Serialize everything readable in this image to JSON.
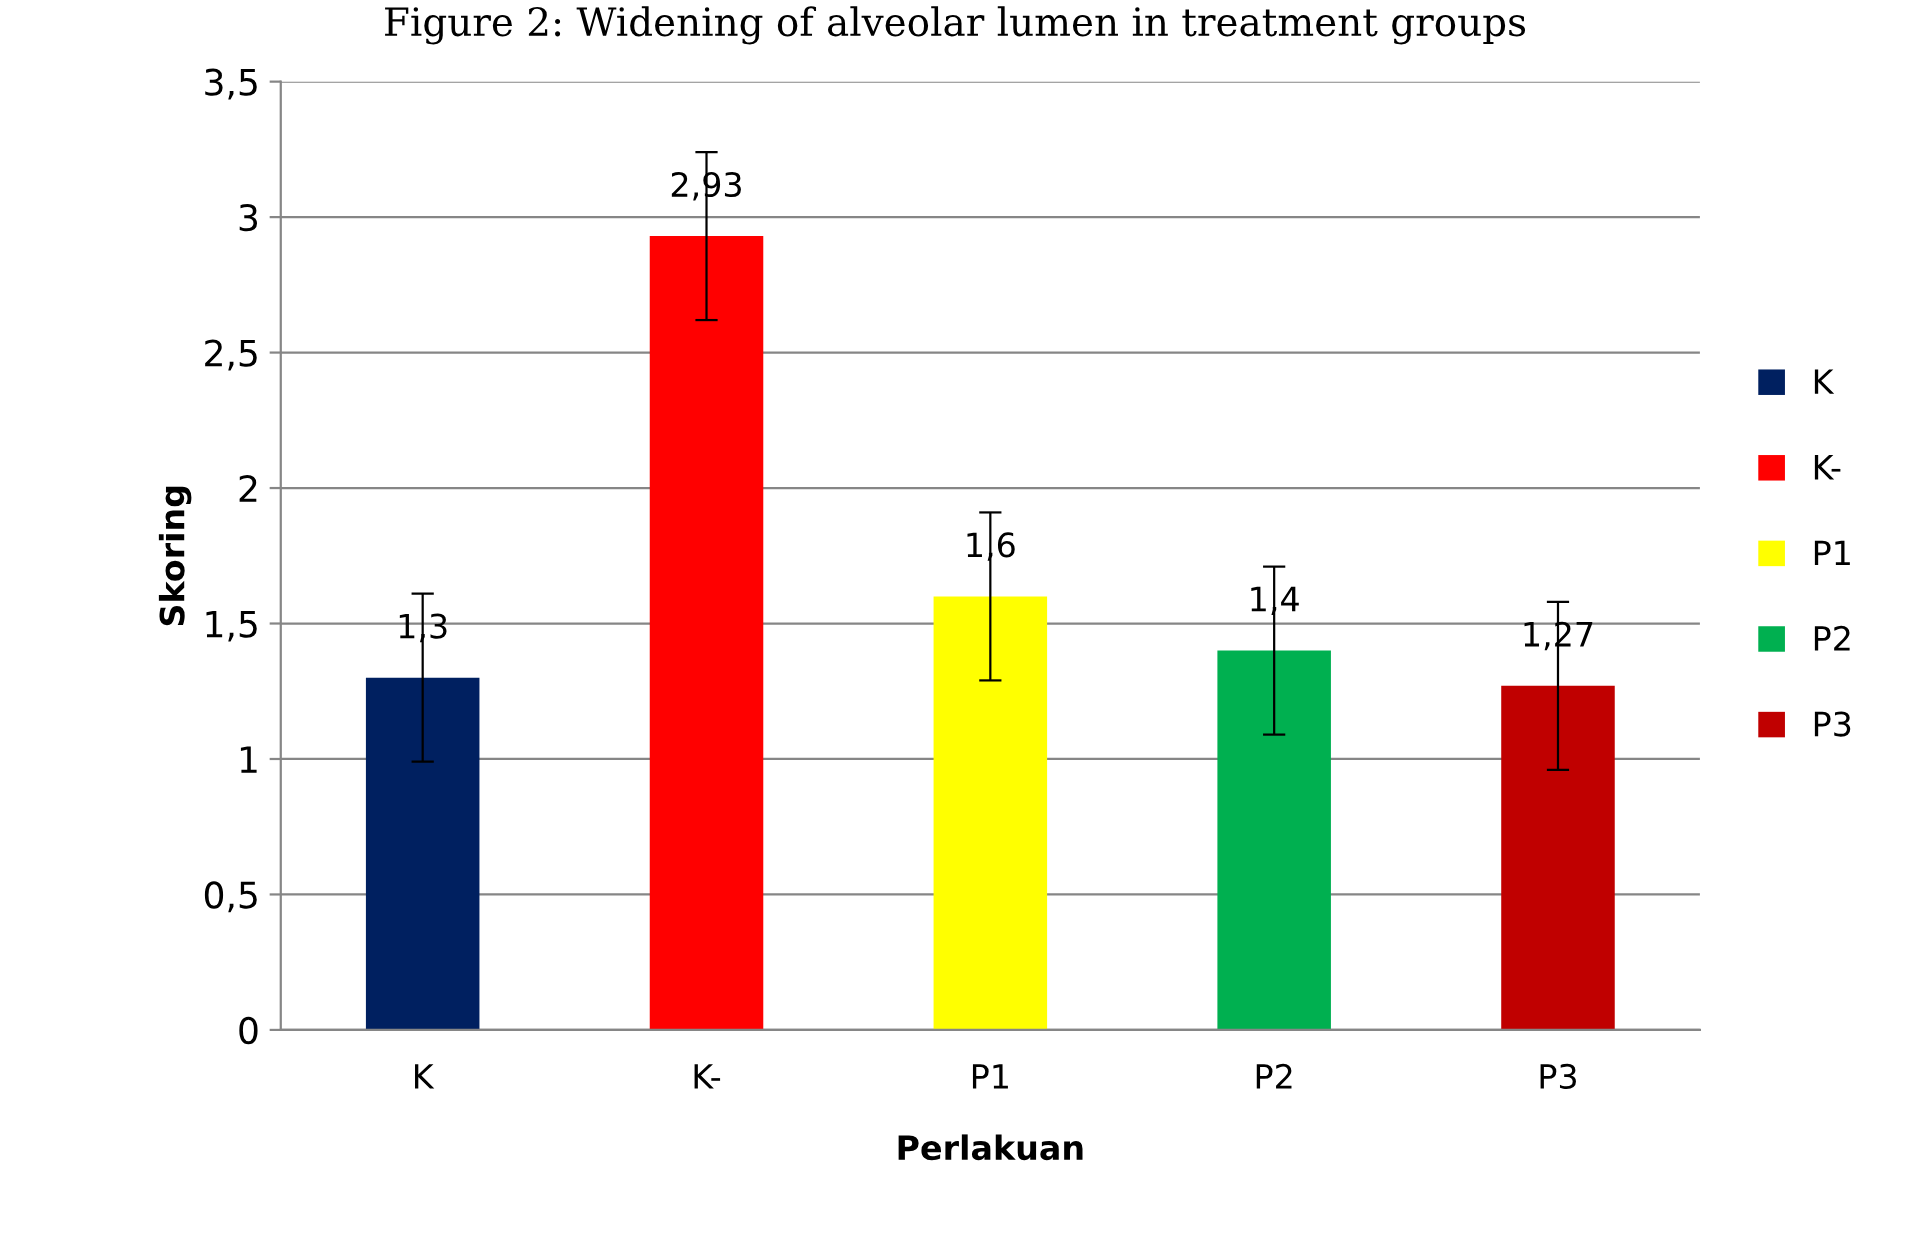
{
  "chart_data": {
    "type": "bar",
    "title": "Figure 2: Widening of alveolar lumen in treatment groups",
    "xlabel": "Perlakuan",
    "ylabel": "Skoring",
    "categories": [
      "K",
      "K-",
      "P1",
      "P2",
      "P3"
    ],
    "series": [
      {
        "name": "K",
        "color": "#002060",
        "values": [
          1.3,
          null,
          null,
          null,
          null
        ],
        "value_labels": [
          "1,3",
          null,
          null,
          null,
          null
        ],
        "errors": [
          0.31,
          null,
          null,
          null,
          null
        ]
      },
      {
        "name": "K-",
        "color": "#ff0000",
        "values": [
          null,
          2.93,
          null,
          null,
          null
        ],
        "value_labels": [
          null,
          "2,93",
          null,
          null,
          null
        ],
        "errors": [
          null,
          0.31,
          null,
          null,
          null
        ]
      },
      {
        "name": "P1",
        "color": "#ffff00",
        "values": [
          null,
          null,
          1.6,
          null,
          null
        ],
        "value_labels": [
          null,
          null,
          "1,6",
          null,
          null
        ],
        "errors": [
          null,
          null,
          0.31,
          null,
          null
        ]
      },
      {
        "name": "P2",
        "color": "#00b050",
        "values": [
          null,
          null,
          null,
          1.4,
          null
        ],
        "value_labels": [
          null,
          null,
          null,
          "1,4",
          null
        ],
        "errors": [
          null,
          null,
          null,
          0.31,
          null
        ]
      },
      {
        "name": "P3",
        "color": "#c00000",
        "values": [
          null,
          null,
          null,
          null,
          1.27
        ],
        "value_labels": [
          null,
          null,
          null,
          null,
          "1,27"
        ],
        "errors": [
          null,
          null,
          null,
          null,
          0.31
        ]
      }
    ],
    "ylim": [
      0,
      3.5
    ],
    "yticks": [
      {
        "value": 0,
        "label": "0"
      },
      {
        "value": 0.5,
        "label": "0,5"
      },
      {
        "value": 1,
        "label": "1"
      },
      {
        "value": 1.5,
        "label": "1,5"
      },
      {
        "value": 2,
        "label": "2"
      },
      {
        "value": 2.5,
        "label": "2,5"
      },
      {
        "value": 3,
        "label": "3"
      },
      {
        "value": 3.5,
        "label": "3,5"
      }
    ],
    "grid": "y",
    "legend": "right"
  }
}
